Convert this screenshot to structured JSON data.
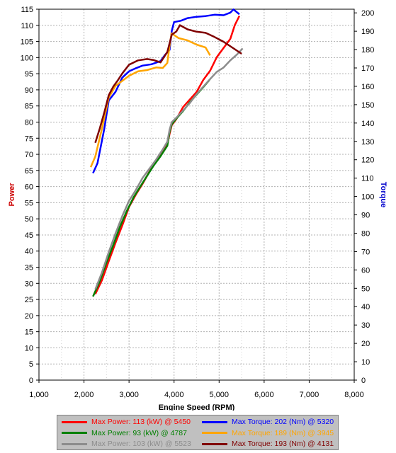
{
  "chart_data": {
    "type": "line",
    "xlabel": "Engine Speed (RPM)",
    "ylabel": "Power",
    "y2label": "Torque",
    "xlim": [
      1000,
      8000
    ],
    "ylim": [
      0,
      115
    ],
    "y2lim": [
      0,
      202
    ],
    "x_ticks": [
      "1,000",
      "2,000",
      "3,000",
      "4,000",
      "5,000",
      "6,000",
      "7,000",
      "8,000"
    ],
    "y_ticks": [
      "0",
      "5",
      "10",
      "15",
      "20",
      "25",
      "30",
      "35",
      "40",
      "45",
      "50",
      "55",
      "60",
      "65",
      "70",
      "75",
      "80",
      "85",
      "90",
      "95",
      "100",
      "105",
      "110",
      "115"
    ],
    "y2_ticks": [
      "0",
      "10",
      "20",
      "30",
      "40",
      "50",
      "60",
      "70",
      "80",
      "90",
      "100",
      "110",
      "120",
      "130",
      "140",
      "150",
      "160",
      "170",
      "180",
      "190",
      "200"
    ],
    "grid": true,
    "legend_position": "bottom",
    "colors": {
      "axis_power": "#cc0000",
      "axis_torque": "#0000cc"
    },
    "series": [
      {
        "name": "Max Power: 113 (kW) @ 5450",
        "axis": "left",
        "color": "#ff0000",
        "x": [
          2250,
          2400,
          2550,
          2700,
          2850,
          3000,
          3150,
          3300,
          3450,
          3600,
          3750,
          3850,
          3900,
          3950,
          4050,
          4200,
          4350,
          4500,
          4650,
          4800,
          4950,
          5100,
          5250,
          5350,
          5450
        ],
        "y": [
          26.5,
          31,
          37,
          42.5,
          48,
          53.5,
          57.5,
          61,
          64.5,
          68,
          70.5,
          73,
          76.5,
          79,
          81,
          84.5,
          87,
          89.5,
          93,
          96,
          100,
          103,
          106,
          110,
          113
        ]
      },
      {
        "name": "Max Power: 93 (kW) @ 4787",
        "axis": "left",
        "color": "#008000",
        "x": [
          2200,
          2350,
          2500,
          2650,
          2800,
          2950,
          3100,
          3250,
          3400,
          3550,
          3700,
          3850,
          3900,
          3950,
          4050,
          4200,
          4350,
          4500,
          4650,
          4787
        ],
        "y": [
          26,
          30.5,
          36.5,
          42,
          47.5,
          52.5,
          56.5,
          60,
          63.5,
          66.5,
          69.5,
          72.5,
          77,
          79.5,
          81,
          83.5,
          86,
          88.5,
          91,
          93
        ]
      },
      {
        "name": "Max Power: 103 (kW) @ 5523",
        "axis": "left",
        "color": "#8c8c8c",
        "x": [
          2250,
          2400,
          2550,
          2700,
          2850,
          3000,
          3150,
          3300,
          3450,
          3600,
          3750,
          3850,
          3900,
          3950,
          4050,
          4200,
          4350,
          4500,
          4650,
          4800,
          4950,
          5100,
          5250,
          5400,
          5523
        ],
        "y": [
          28,
          33.5,
          39.5,
          45.5,
          51,
          55.5,
          59,
          62.5,
          65.5,
          68.5,
          71.5,
          74,
          77.5,
          80,
          81.5,
          83.5,
          86,
          88.5,
          91,
          93.5,
          95.5,
          97,
          99,
          101,
          103
        ]
      },
      {
        "name": "Max Torque: 202 (Nm) @ 5320",
        "axis": "right",
        "color": "#0000ff",
        "x": [
          2200,
          2300,
          2450,
          2550,
          2700,
          2850,
          3000,
          3150,
          3300,
          3500,
          3700,
          3800,
          3900,
          3950,
          4000,
          4150,
          4300,
          4500,
          4700,
          4900,
          5100,
          5250,
          5320,
          5450
        ],
        "y": [
          113,
          118,
          137,
          152,
          157,
          165,
          168,
          170,
          171,
          172,
          174,
          177,
          180,
          190,
          195,
          196,
          197,
          198,
          198,
          199,
          199,
          200,
          202,
          199
        ]
      },
      {
        "name": "Max Torque: 189 (Nm) @ 3945",
        "axis": "right",
        "color": "#ffa500",
        "x": [
          2150,
          2250,
          2400,
          2550,
          2700,
          2850,
          3000,
          3200,
          3400,
          3600,
          3750,
          3850,
          3900,
          3945,
          4100,
          4300,
          4500,
          4700,
          4800
        ],
        "y": [
          116,
          122,
          137,
          154,
          160,
          163,
          166,
          168,
          169,
          170,
          170,
          173,
          182,
          189,
          186,
          185,
          183,
          181,
          177
        ]
      },
      {
        "name": "Max Torque: 193 (Nm) @ 4131",
        "axis": "right",
        "color": "#800000",
        "x": [
          2250,
          2350,
          2450,
          2550,
          2650,
          2750,
          2850,
          3000,
          3200,
          3400,
          3550,
          3700,
          3850,
          3950,
          4050,
          4131,
          4300,
          4500,
          4700,
          4900,
          5100,
          5300,
          5500
        ],
        "y": [
          129,
          137,
          146,
          155,
          160,
          163,
          167,
          172,
          174,
          175,
          174,
          173,
          179,
          188,
          190,
          193,
          191,
          190,
          189,
          187,
          184,
          181,
          178
        ]
      }
    ]
  }
}
